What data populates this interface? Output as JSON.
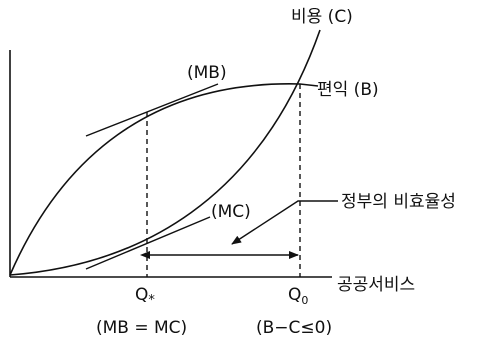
{
  "labels": {
    "cost_curve": "비용 (C)",
    "benefit_curve": "편익 (B)",
    "mb_tangent": "(MB)",
    "mc_tangent": "(MC)",
    "gov_failure": "정부의 비효율성",
    "x_axis": "공공서비스",
    "q_star": "Q",
    "q_star_sub": "*",
    "q_zero": "Q",
    "q_zero_sub": "0",
    "q_star_note": "(MB = MC)",
    "q_zero_note": "(B−C≤0)"
  },
  "colors": {
    "ink": "#111111",
    "background": "#ffffff"
  }
}
